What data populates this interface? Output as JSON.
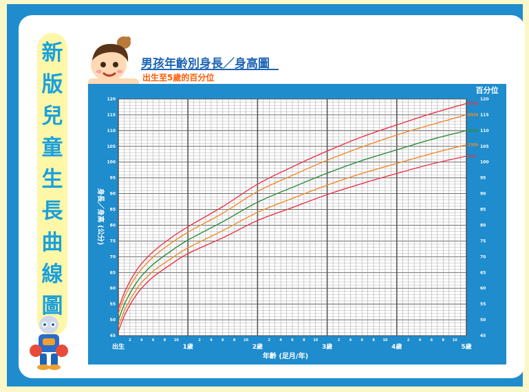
{
  "side_title": [
    "新",
    "版",
    "兒",
    "童",
    "生",
    "長",
    "曲",
    "線",
    "圖"
  ],
  "header": {
    "title": "男孩年齡別身長／身高圖",
    "subtitle": "出生至5歲的百分位"
  },
  "chart_data": {
    "type": "line",
    "title": "男孩年齡別身長／身高圖",
    "subtitle": "出生至5歲的百分位",
    "xlabel": "年齡 (足月/年)",
    "ylabel": "身長／身高 (公分)",
    "right_axis_title": "百分位",
    "x_unit": "months",
    "xlim": [
      0,
      60
    ],
    "ylim": [
      45,
      120
    ],
    "y_ticks": [
      45,
      50,
      55,
      60,
      65,
      70,
      75,
      80,
      85,
      90,
      95,
      100,
      105,
      110,
      115,
      120
    ],
    "x_major_labels": [
      {
        "x": 0,
        "label": "出生"
      },
      {
        "x": 12,
        "label": "1歲"
      },
      {
        "x": 24,
        "label": "2歲"
      },
      {
        "x": 36,
        "label": "3歲"
      },
      {
        "x": 48,
        "label": "4歲"
      },
      {
        "x": 60,
        "label": "5歲"
      }
    ],
    "x_minor_labels": [
      "2",
      "4",
      "6",
      "8",
      "10"
    ],
    "grid": true,
    "x": [
      0,
      1,
      2,
      3,
      4,
      6,
      9,
      12,
      18,
      24,
      30,
      36,
      42,
      48,
      54,
      60
    ],
    "series": [
      {
        "name": "97th",
        "color": "#e8344a",
        "values": [
          53.4,
          58.4,
          62.2,
          65.3,
          67.8,
          71.6,
          75.9,
          79.5,
          85.9,
          93.0,
          98.5,
          103.5,
          108.0,
          111.8,
          115.4,
          118.6
        ]
      },
      {
        "name": "85th",
        "color": "#f08a2a",
        "values": [
          51.9,
          56.9,
          60.6,
          63.6,
          66.1,
          69.9,
          74.2,
          77.8,
          83.8,
          90.7,
          95.8,
          100.6,
          104.8,
          108.6,
          111.9,
          115.0
        ]
      },
      {
        "name": "50th",
        "color": "#2e8b3e",
        "values": [
          49.9,
          54.7,
          58.4,
          61.4,
          63.9,
          67.6,
          71.7,
          75.3,
          81.1,
          87.3,
          92.0,
          96.5,
          100.5,
          103.9,
          107.2,
          110.0
        ]
      },
      {
        "name": "15th",
        "color": "#f08a2a",
        "values": [
          47.9,
          52.7,
          56.3,
          59.3,
          61.8,
          65.4,
          69.3,
          72.8,
          78.3,
          84.1,
          88.5,
          92.7,
          96.4,
          99.6,
          102.7,
          105.5
        ]
      },
      {
        "name": "3rd",
        "color": "#e8344a",
        "values": [
          46.3,
          51.1,
          54.7,
          57.6,
          60.0,
          63.6,
          67.5,
          71.0,
          76.0,
          81.5,
          85.6,
          89.7,
          93.2,
          96.4,
          99.4,
          101.9
        ]
      }
    ]
  }
}
